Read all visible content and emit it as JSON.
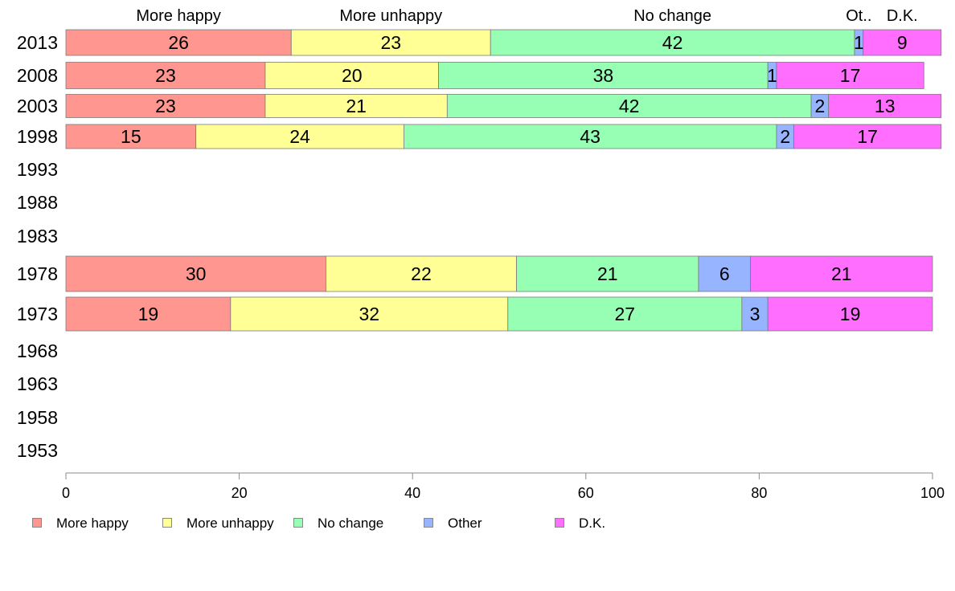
{
  "chart_data": {
    "type": "bar",
    "orientation": "horizontal",
    "stacked": true,
    "categories": [
      "2013",
      "2008",
      "2003",
      "1998",
      "1993",
      "1988",
      "1983",
      "1978",
      "1973",
      "1968",
      "1963",
      "1958",
      "1953"
    ],
    "series": [
      {
        "name": "More happy",
        "color": "#ff9690",
        "values": [
          26,
          23,
          23,
          15,
          null,
          null,
          null,
          30,
          19,
          null,
          null,
          null,
          null
        ]
      },
      {
        "name": "More unhappy",
        "color": "#ffff96",
        "values": [
          23,
          20,
          21,
          24,
          null,
          null,
          null,
          22,
          32,
          null,
          null,
          null,
          null
        ]
      },
      {
        "name": "No change",
        "color": "#96ffb4",
        "values": [
          42,
          38,
          42,
          43,
          null,
          null,
          null,
          21,
          27,
          null,
          null,
          null,
          null
        ]
      },
      {
        "name": "Other",
        "color": "#96b4ff",
        "values": [
          1,
          1,
          2,
          2,
          null,
          null,
          null,
          6,
          3,
          null,
          null,
          null,
          null
        ]
      },
      {
        "name": "D.K.",
        "color": "#ff6eff",
        "values": [
          9,
          17,
          13,
          17,
          null,
          null,
          null,
          21,
          19,
          null,
          null,
          null,
          null
        ]
      }
    ],
    "top_labels": [
      "More happy",
      "More unhappy",
      "No change",
      "Ot..",
      "D.K."
    ],
    "xlim": [
      0,
      100
    ],
    "xticks": [
      0,
      20,
      40,
      60,
      80,
      100
    ],
    "xlabel": "",
    "ylabel": "",
    "title": "",
    "grid": false,
    "legend_position": "bottom"
  }
}
